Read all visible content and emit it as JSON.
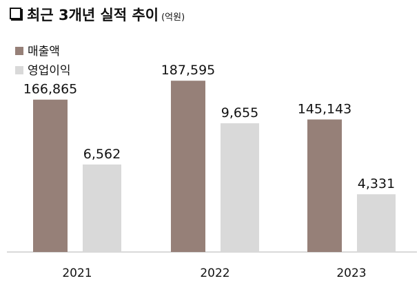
{
  "chart_data": {
    "type": "bar",
    "title": "최근 3개년 실적 추이",
    "unit": "(억원)",
    "categories": [
      "2021",
      "2022",
      "2023"
    ],
    "series": [
      {
        "name": "매출액",
        "values": [
          166865,
          187595,
          145143
        ],
        "color": "#968078",
        "axis": "primary"
      },
      {
        "name": "영업이익",
        "values": [
          6562,
          9655,
          4331
        ],
        "color": "#d9d9d9",
        "axis": "secondary"
      }
    ],
    "data_labels": [
      [
        "166,865",
        "187,595",
        "145,143"
      ],
      [
        "6,562",
        "9,655",
        "4,331"
      ]
    ],
    "ylim": [
      0,
      276000
    ],
    "y2lim": [
      0,
      18900
    ],
    "grid": false,
    "legend_position": "top-left"
  }
}
